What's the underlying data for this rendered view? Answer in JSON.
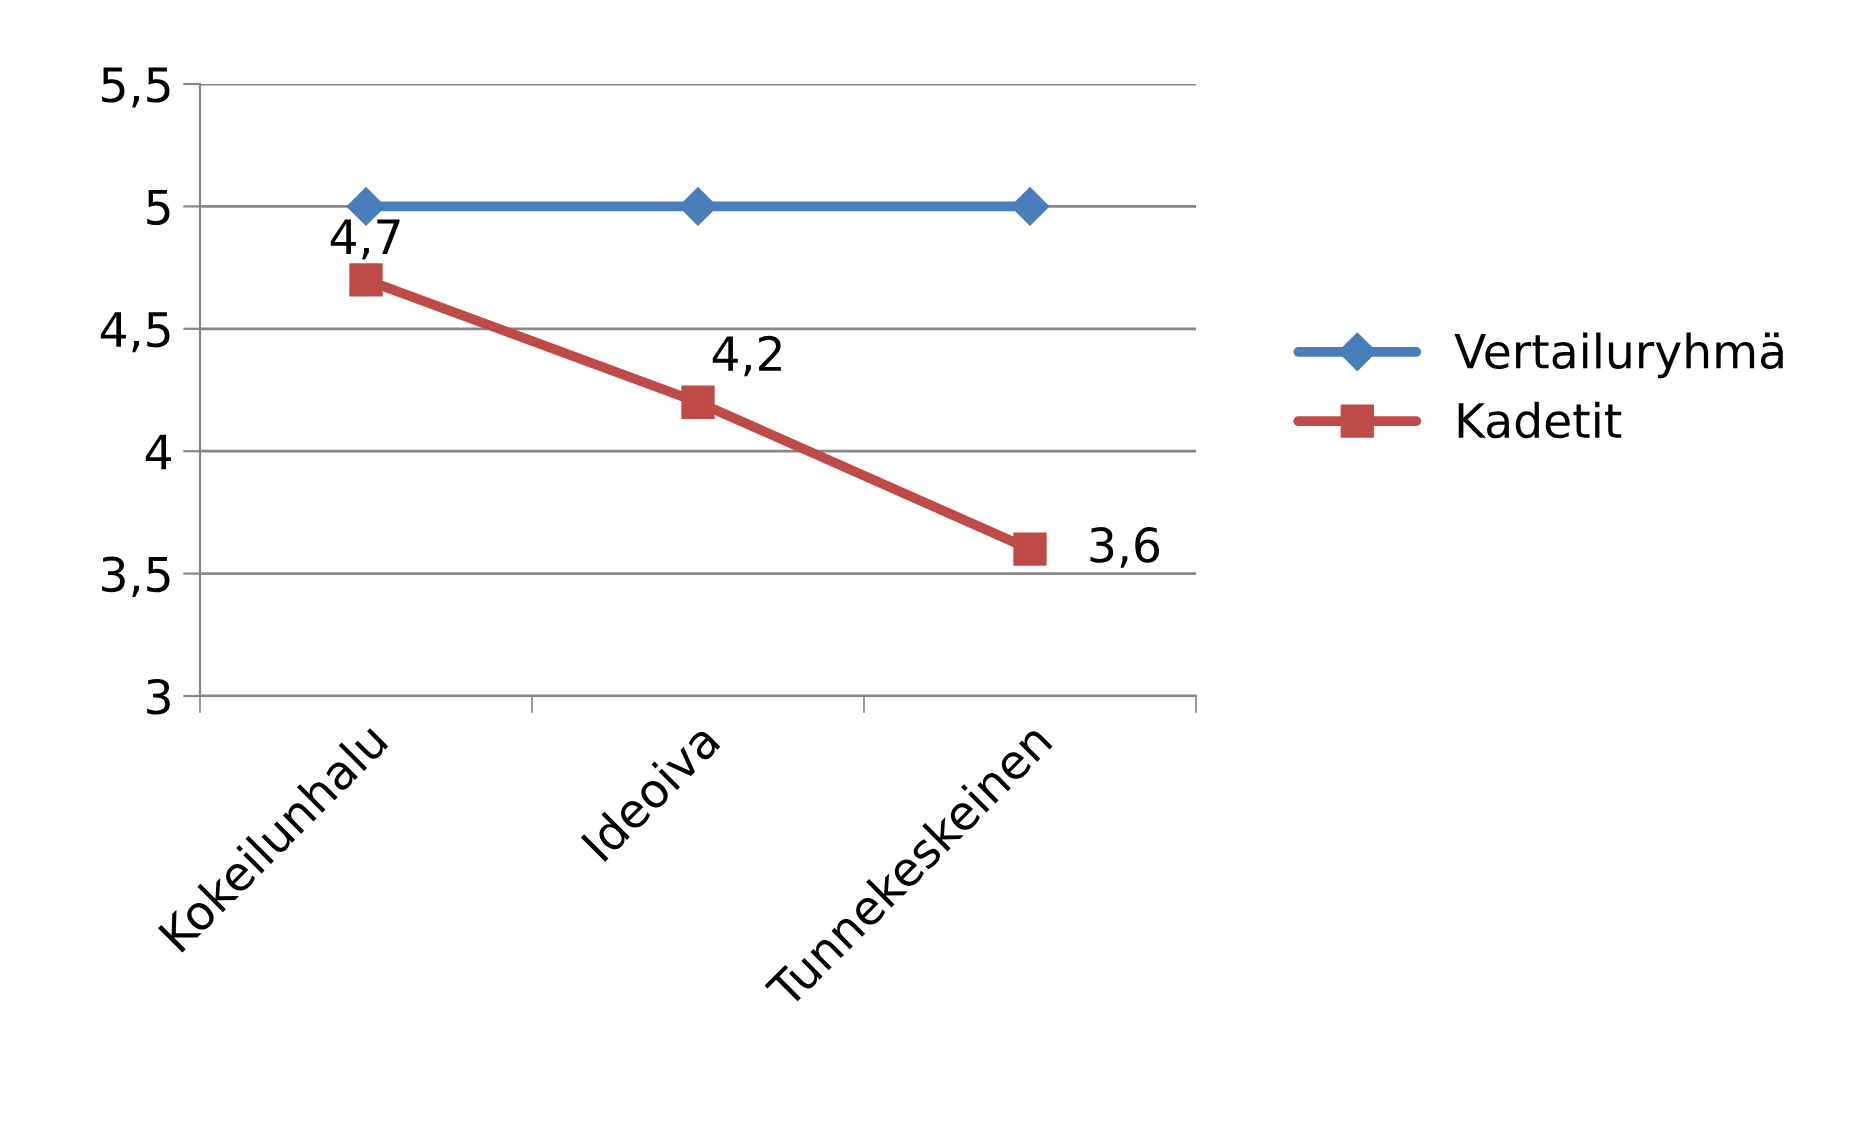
{
  "chart_data": {
    "type": "line",
    "categories": [
      "Kokeilunhalu",
      "Ideoiva",
      "Tunnekeskeinen"
    ],
    "series": [
      {
        "name": "Vertailuryhmä",
        "color": "#4a7ebb",
        "marker": "diamond",
        "values": [
          5,
          5,
          5
        ]
      },
      {
        "name": "Kadetit",
        "color": "#be4b48",
        "marker": "square",
        "values": [
          4.7,
          4.2,
          3.6
        ],
        "value_labels": [
          "4,7",
          "4,2",
          "3,6"
        ]
      }
    ],
    "ylim": [
      3,
      5.5
    ],
    "yticks": [
      {
        "value": 3,
        "label": "3"
      },
      {
        "value": 3.5,
        "label": "3,5"
      },
      {
        "value": 4,
        "label": "4"
      },
      {
        "value": 4.5,
        "label": "4,5"
      },
      {
        "value": 5,
        "label": "5"
      },
      {
        "value": 5.5,
        "label": "5,5"
      }
    ],
    "grid": "y",
    "legend": "right",
    "line_style": "solid"
  }
}
